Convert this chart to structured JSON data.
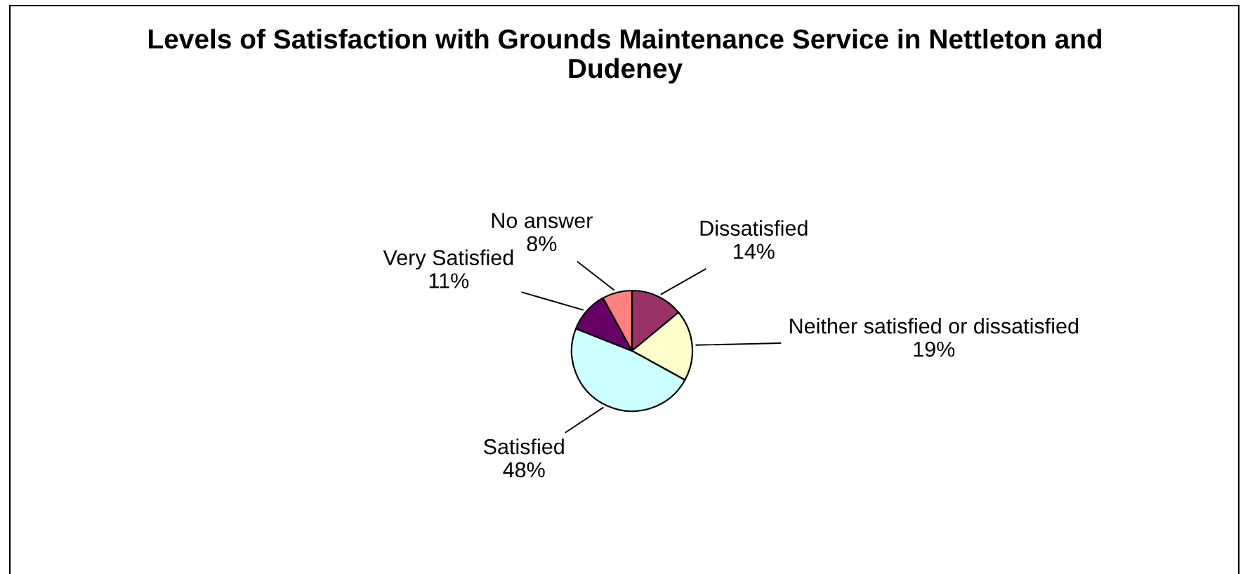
{
  "chart_data": {
    "type": "pie",
    "title": "Levels of Satisfaction with Grounds Maintenance Service in Nettleton and Dudeney",
    "categories": [
      "Dissatisfied",
      "Neither satisfied or dissatisfied",
      "Satisfied",
      "Very Satisfied",
      "No answer"
    ],
    "values": [
      14,
      19,
      48,
      11,
      8
    ],
    "value_labels": [
      "14%",
      "19%",
      "48%",
      "11%",
      "8%"
    ],
    "colors": [
      "#993366",
      "#ffffcc",
      "#ccffff",
      "#660066",
      "#ff8080"
    ],
    "legend": false
  }
}
